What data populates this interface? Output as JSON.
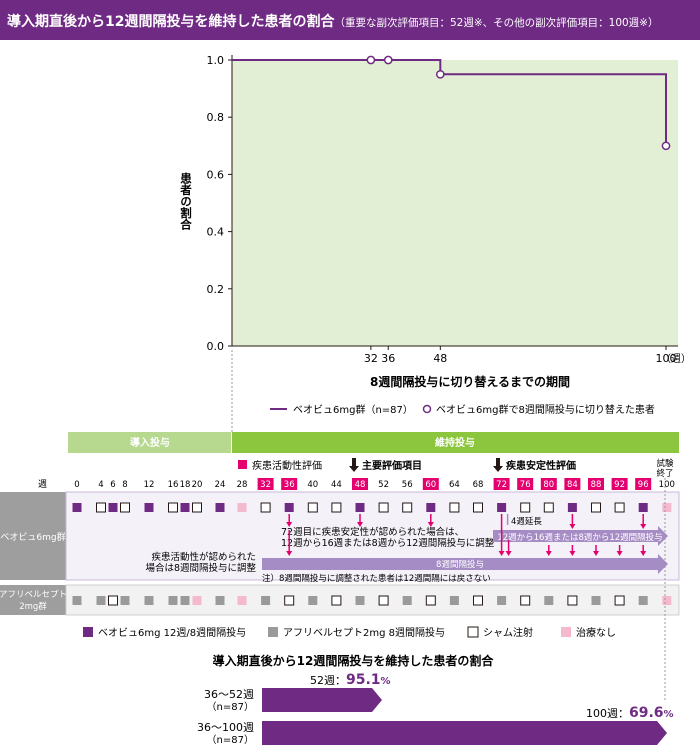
{
  "header": {
    "title": "導入期直後から12週間隔投与を維持した患者の割合",
    "subtitle": "（重要な副次評価項目：52週※、その他の副次評価項目：100週※）"
  },
  "chart_data": [
    {
      "type": "line",
      "step": true,
      "series": [
        {
          "name": "ベオビュ6mg群（n=87）",
          "x": [
            0,
            32,
            36,
            48,
            100
          ],
          "y": [
            1.0,
            1.0,
            1.0,
            0.95,
            0.7
          ]
        }
      ],
      "markers": {
        "name": "ベオビュ6mg群で8週間隔投与に切り替えた患者",
        "x": [
          32,
          36,
          48,
          100
        ],
        "y": [
          1.0,
          1.0,
          0.95,
          0.7
        ]
      },
      "xlabel": "8週間隔投与に切り替えるまでの期間",
      "xunit": "（週）",
      "ylabel": "患者の割合",
      "xticks": [
        "32",
        "36",
        "48",
        "100"
      ],
      "yticks": [
        "1.0",
        "0.8",
        "0.6",
        "0.4",
        "0.2",
        "0.0"
      ],
      "xlim": [
        0,
        100
      ],
      "ylim": [
        0,
        1.0
      ],
      "grid": false,
      "legend_position": "bottom"
    },
    {
      "type": "bar",
      "orientation": "horizontal",
      "title": "導入期直後から12週間隔投与を維持した患者の割合",
      "categories": [
        "36〜52週（n=87）",
        "36〜100週（n=87）"
      ],
      "values": [
        95.1,
        69.6
      ],
      "labels": [
        {
          "prefix": "52週：",
          "value": "95.1",
          "unit": "%"
        },
        {
          "prefix": "100週：",
          "value": "69.6",
          "unit": "%"
        }
      ]
    }
  ],
  "schedule": {
    "phase_induction": "導入投与",
    "phase_maintenance": "維持投与",
    "week_label": "週",
    "weeks": [
      "0",
      "4",
      "6",
      "8",
      "12",
      "16",
      "18",
      "20",
      "24",
      "28",
      "32",
      "36",
      "40",
      "44",
      "48",
      "52",
      "56",
      "60",
      "64",
      "68",
      "72",
      "76",
      "80",
      "84",
      "88",
      "92",
      "96",
      "100"
    ],
    "legend_activity": "疾患活動性評価",
    "primary_endpoint": "主要評価項目",
    "stability_eval": "疾患安定性評価",
    "trial_end_1": "試験",
    "trial_end_2": "終了",
    "row_beovu": "ベオビュ6mg群",
    "row_aflibercept_1": "アフリベルセプト",
    "row_aflibercept_2": "2mg群",
    "note_stable_1": "72週目に疾患安定性が認められた場合は、",
    "note_stable_2": "12週から16週または8週から12週間隔投与に調整",
    "note_activity_1": "疾患活動性が認められた",
    "note_activity_2": "場合は8週間隔投与に調整",
    "extend_4w": "4週延長",
    "arrow_12_16": "12週から16週または8週から12週間隔投与",
    "arrow_8w": "8週間隔投与",
    "note_footer": "注）8週間隔投与に調整された患者は12週間隔には戻さない"
  },
  "legend_bottom": {
    "beovu": "ベオビュ6mg 12週/8週間隔投与",
    "aflibercept": "アフリベルセプト2mg 8週間隔投与",
    "sham": "シャム注射",
    "none": "治療なし"
  },
  "colors": {
    "purple": "#6f2a84",
    "magenta": "#e4006e",
    "green_fill": "#e3efd4",
    "green_bar": "#8cc63f",
    "gray_mark": "#9a9a9a",
    "pink_none": "#f4b8cf",
    "lavender": "#a58cc4"
  }
}
